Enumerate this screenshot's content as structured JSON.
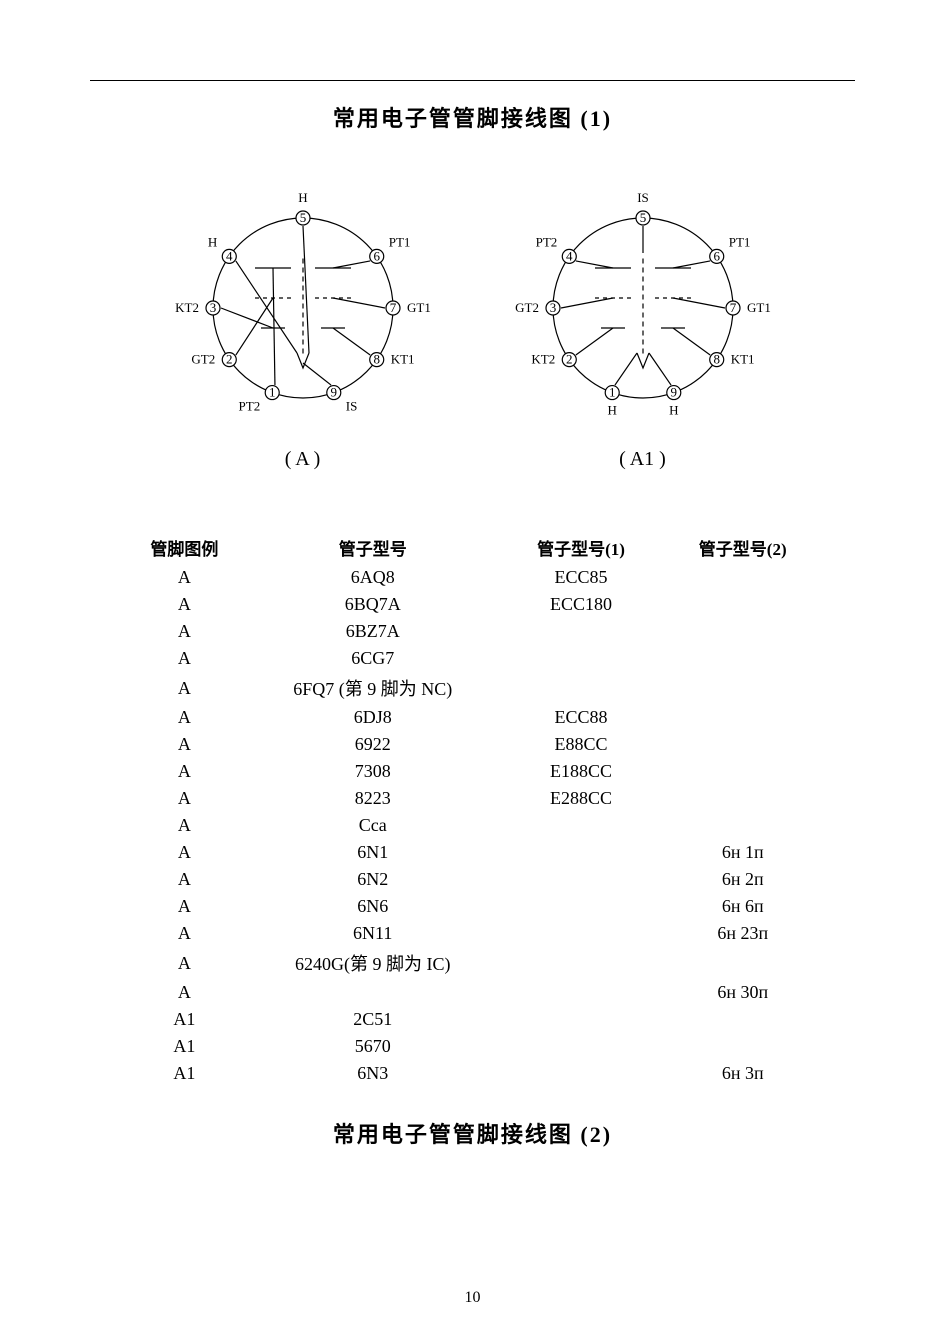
{
  "title_top": "常用电子管管脚接线图  (1)",
  "title_bottom": "常用电子管管脚接线图  (2)",
  "page_number": "10",
  "diagram_a": {
    "caption": "( A )",
    "radius": 90,
    "stroke": "#000000",
    "stroke_width": 1.2,
    "background": "#ffffff",
    "pins": [
      {
        "n": "1",
        "angle_deg": 250,
        "label": "PT2",
        "label_pos": "below-left"
      },
      {
        "n": "2",
        "angle_deg": 215,
        "label": "GT2",
        "label_pos": "left"
      },
      {
        "n": "3",
        "angle_deg": 180,
        "label": "KT2",
        "label_pos": "left"
      },
      {
        "n": "4",
        "angle_deg": 145,
        "label": "H",
        "label_pos": "above-left"
      },
      {
        "n": "5",
        "angle_deg": 90,
        "label": "H",
        "label_pos": "above"
      },
      {
        "n": "6",
        "angle_deg": 35,
        "label": "PT1",
        "label_pos": "above-right"
      },
      {
        "n": "7",
        "angle_deg": 0,
        "label": "GT1",
        "label_pos": "right"
      },
      {
        "n": "8",
        "angle_deg": 325,
        "label": "KT1",
        "label_pos": "right"
      },
      {
        "n": "9",
        "angle_deg": 290,
        "label": "IS",
        "label_pos": "below-right"
      }
    ]
  },
  "diagram_a1": {
    "caption": "( A1 )",
    "radius": 90,
    "stroke": "#000000",
    "stroke_width": 1.2,
    "background": "#ffffff",
    "pins": [
      {
        "n": "1",
        "angle_deg": 250,
        "label": "H",
        "label_pos": "below"
      },
      {
        "n": "2",
        "angle_deg": 215,
        "label": "KT2",
        "label_pos": "left"
      },
      {
        "n": "3",
        "angle_deg": 180,
        "label": "GT2",
        "label_pos": "left"
      },
      {
        "n": "4",
        "angle_deg": 145,
        "label": "PT2",
        "label_pos": "above-left"
      },
      {
        "n": "5",
        "angle_deg": 90,
        "label": "IS",
        "label_pos": "above"
      },
      {
        "n": "6",
        "angle_deg": 35,
        "label": "PT1",
        "label_pos": "above-right"
      },
      {
        "n": "7",
        "angle_deg": 0,
        "label": "GT1",
        "label_pos": "right"
      },
      {
        "n": "8",
        "angle_deg": 325,
        "label": "KT1",
        "label_pos": "right"
      },
      {
        "n": "9",
        "angle_deg": 290,
        "label": "H",
        "label_pos": "below"
      }
    ]
  },
  "table": {
    "headers": [
      "管脚图例",
      "管子型号",
      "管子型号(1)",
      "管子型号(2)"
    ],
    "rows": [
      [
        "A",
        "6AQ8",
        "ECC85",
        ""
      ],
      [
        "A",
        "6BQ7A",
        "ECC180",
        ""
      ],
      [
        "A",
        "6BZ7A",
        "",
        ""
      ],
      [
        "A",
        "6CG7",
        "",
        ""
      ],
      [
        "A",
        "6FQ7  (第 9 脚为 NC)",
        "",
        ""
      ],
      [
        "A",
        "6DJ8",
        "ECC88",
        ""
      ],
      [
        "A",
        "6922",
        "E88CC",
        ""
      ],
      [
        "A",
        "7308",
        "E188CC",
        ""
      ],
      [
        "A",
        "8223",
        "E288CC",
        ""
      ],
      [
        "A",
        "Cca",
        "",
        ""
      ],
      [
        "A",
        "6N1",
        "",
        "6н  1п"
      ],
      [
        "A",
        "6N2",
        "",
        "6н  2п"
      ],
      [
        "A",
        "6N6",
        "",
        "6н  6п"
      ],
      [
        "A",
        "6N11",
        "",
        "6н  23п"
      ],
      [
        "A",
        "6240G(第 9 脚为 IC)",
        "",
        ""
      ],
      [
        "A",
        "",
        "",
        "6н  30п"
      ],
      [
        "A1",
        "2C51",
        "",
        ""
      ],
      [
        "A1",
        "5670",
        "",
        ""
      ],
      [
        "A1",
        "6N3",
        "",
        "6н  3п"
      ]
    ]
  }
}
